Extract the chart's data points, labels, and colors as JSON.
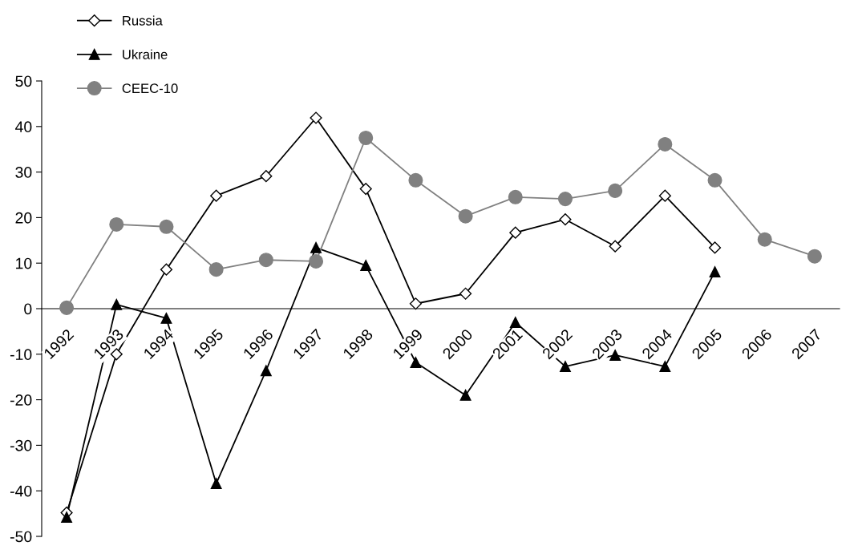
{
  "chart_data": {
    "type": "line",
    "categories": [
      "1992",
      "1993",
      "1994",
      "1995",
      "1996",
      "1997",
      "1998",
      "1999",
      "2000",
      "2001",
      "2002",
      "2003",
      "2004",
      "2005",
      "2006",
      "2007"
    ],
    "series": [
      {
        "name": "Russia",
        "color": "#000000",
        "marker": "diamond",
        "values": [
          -44.8,
          -10.0,
          8.6,
          24.8,
          29.1,
          41.9,
          26.3,
          1.1,
          3.3,
          16.7,
          19.6,
          13.7,
          24.8,
          13.4,
          null,
          null
        ]
      },
      {
        "name": "Ukraine",
        "color": "#000000",
        "marker": "triangle",
        "values": [
          -45.8,
          0.9,
          -2.1,
          -38.4,
          -13.6,
          13.4,
          9.5,
          -11.8,
          -19.0,
          -3.0,
          -12.7,
          -10.2,
          -12.7,
          8.1,
          null,
          null
        ]
      },
      {
        "name": "CEEC-10",
        "color": "#808080",
        "marker": "circle",
        "values": [
          0.2,
          18.5,
          18.0,
          8.6,
          10.7,
          10.4,
          37.5,
          28.2,
          20.3,
          24.5,
          24.1,
          25.9,
          36.1,
          28.2,
          15.2,
          11.5
        ]
      }
    ],
    "ylim": [
      -50,
      50
    ],
    "yticks": [
      -50,
      -40,
      -30,
      -20,
      -10,
      0,
      10,
      20,
      30,
      40,
      50
    ],
    "grid": false,
    "legend": "top left"
  }
}
